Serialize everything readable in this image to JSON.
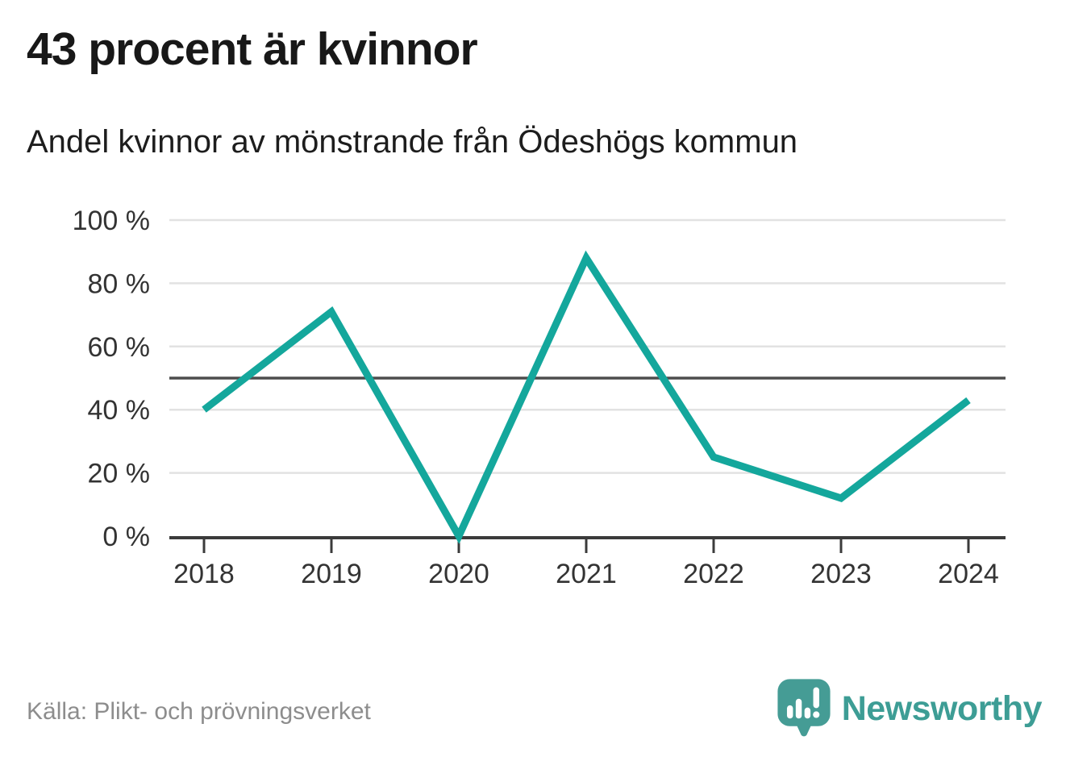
{
  "header": {
    "title": "43 procent är kvinnor",
    "subtitle": "Andel kvinnor av mönstrande från Ödeshögs kommun"
  },
  "chart_data": {
    "type": "line",
    "title": "43 procent är kvinnor",
    "subtitle": "Andel kvinnor av mönstrande från Ödeshögs kommun",
    "x": [
      "2018",
      "2019",
      "2020",
      "2021",
      "2022",
      "2023",
      "2024"
    ],
    "series": [
      {
        "name": "Andel kvinnor av mönstrande",
        "values": [
          40,
          71,
          0,
          88,
          25,
          12,
          43
        ]
      }
    ],
    "xlabel": "",
    "ylabel": "",
    "ylim": [
      0,
      100
    ],
    "yticks": [
      0,
      20,
      40,
      60,
      80,
      100
    ],
    "ytick_suffix": " %",
    "reference_line": 50,
    "grid": true,
    "legend": "none",
    "line_color": "#14a79c",
    "axis_color": "#3b3b3b",
    "grid_color": "#e2e2e2",
    "reference_line_color": "#4d4d4d",
    "tick_label_color": "#333333"
  },
  "footer": {
    "source": "Källa: Plikt- och prövningsverket",
    "brand": "Newsworthy",
    "brand_color": "#3d9d95"
  }
}
